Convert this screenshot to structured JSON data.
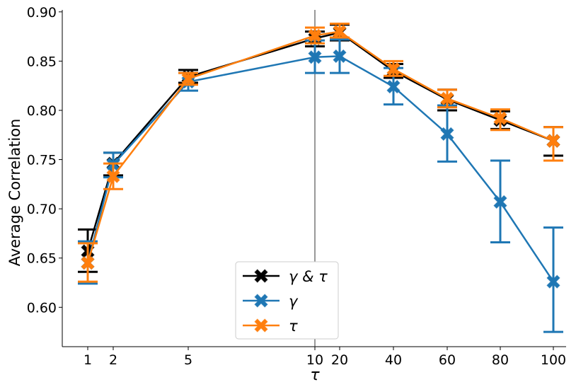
{
  "chart_data": {
    "type": "line",
    "title": "",
    "xlabel": "τ",
    "ylabel": "Average Correlation",
    "categories": [
      "1",
      "2",
      "5",
      "10",
      "20",
      "40",
      "60",
      "80",
      "100"
    ],
    "ylim": [
      0.56,
      0.902
    ],
    "yticks": [
      "0.60",
      "0.65",
      "0.70",
      "0.75",
      "0.80",
      "0.85",
      "0.90"
    ],
    "vertical_line_at": "10",
    "legend_position": "bottom-center",
    "grid": false,
    "series": [
      {
        "name": "γ & τ",
        "color": "#000000",
        "marker": "x-filled",
        "values": [
          0.657,
          0.746,
          0.834,
          0.873,
          0.879,
          0.84,
          0.811,
          0.79,
          0.769
        ],
        "err_low": [
          0.636,
          0.734,
          0.828,
          0.865,
          0.871,
          0.833,
          0.8,
          0.781,
          0.754
        ],
        "err_high": [
          0.679,
          0.757,
          0.841,
          0.88,
          0.887,
          0.847,
          0.821,
          0.799,
          0.783
        ]
      },
      {
        "name": "γ",
        "color": "#1f77b4",
        "marker": "x-filled",
        "values": [
          0.645,
          0.745,
          0.829,
          0.854,
          0.855,
          0.824,
          0.776,
          0.707,
          0.626
        ],
        "err_low": [
          0.624,
          0.732,
          0.82,
          0.838,
          0.838,
          0.806,
          0.748,
          0.666,
          0.575
        ],
        "err_high": [
          0.667,
          0.757,
          0.838,
          0.871,
          0.872,
          0.843,
          0.805,
          0.749,
          0.681
        ]
      },
      {
        "name": "τ",
        "color": "#ff7f0e",
        "marker": "x-filled",
        "values": [
          0.645,
          0.733,
          0.832,
          0.876,
          0.88,
          0.842,
          0.812,
          0.792,
          0.769
        ],
        "err_low": [
          0.626,
          0.72,
          0.826,
          0.868,
          0.874,
          0.835,
          0.803,
          0.78,
          0.749
        ],
        "err_high": [
          0.665,
          0.746,
          0.838,
          0.884,
          0.888,
          0.85,
          0.821,
          0.801,
          0.783
        ]
      }
    ]
  }
}
